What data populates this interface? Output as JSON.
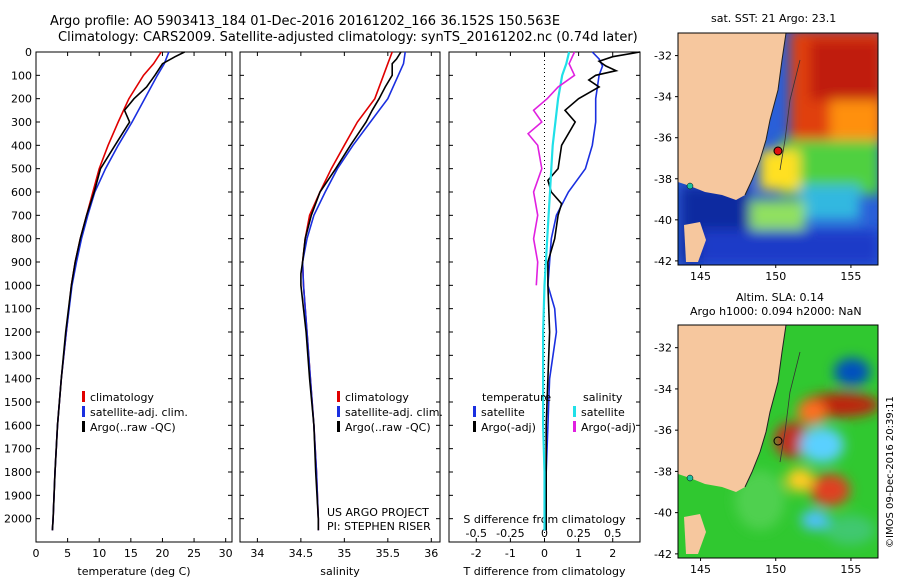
{
  "header": {
    "line1": "Argo profile: AO 5903413_184 01-Dec-2016 20161202_166 36.152S 150.563E",
    "line2": "Climatology: CARS2009. Satellite-adjusted climatology: synTS_20161202.nc (0.74d later)"
  },
  "colors": {
    "climatology": "#e00000",
    "satellite": "#1a2fe0",
    "argo": "#000000",
    "t_sat_diff": "#1a2fe0",
    "t_argo_diff": "#000000",
    "s_sat_diff": "#20e0e8",
    "s_argo_diff": "#e020e0"
  },
  "legend": {
    "climatology": "climatology",
    "satellite_adj": "satellite-adj. clim.",
    "argo_raw": "Argo(..raw -QC)",
    "diff_temperature": "temperature",
    "diff_salinity": "salinity",
    "diff_satellite": "satellite",
    "diff_argo_adj": "Argo(-adj)"
  },
  "credits": {
    "project": "US ARGO PROJECT",
    "pi": "PI: STEPHEN RISER",
    "imos": "©IMOS 09-Dec-2016 20:39:11"
  },
  "maps": {
    "sst_title": "sat. SST: 21 Argo: 23.1",
    "sla_title1": "Altim. SLA: 0.14",
    "sla_title2": "Argo h1000: 0.094 h2000: NaN",
    "lon_ticks": [
      "145",
      "150",
      "155"
    ],
    "lat_ticks": [
      "-32",
      "-34",
      "-36",
      "-38",
      "-40",
      "-42"
    ]
  },
  "chart_data": [
    {
      "type": "line",
      "xlabel": "temperature (deg C)",
      "ylabel": "",
      "xlim": [
        0,
        31
      ],
      "ylim": [
        2100,
        0
      ],
      "xticks": [
        "0",
        "5",
        "10",
        "15",
        "20",
        "25",
        "30"
      ],
      "yticks": [
        "0",
        "100",
        "200",
        "300",
        "400",
        "500",
        "600",
        "700",
        "800",
        "900",
        "1000",
        "1100",
        "1200",
        "1300",
        "1400",
        "1500",
        "1600",
        "1700",
        "1800",
        "1900",
        "2000"
      ],
      "series": [
        {
          "name": "climatology",
          "depth": [
            0,
            50,
            100,
            200,
            300,
            400,
            500,
            600,
            700,
            800,
            900,
            1000,
            1200,
            1400,
            1600,
            1800,
            2000,
            2050
          ],
          "values": [
            19.8,
            18.6,
            17.0,
            14.7,
            13.0,
            11.4,
            10.0,
            9.0,
            8.0,
            7.0,
            6.2,
            5.6,
            4.8,
            4.0,
            3.4,
            3.0,
            2.7,
            2.6
          ]
        },
        {
          "name": "satellite-adj. clim.",
          "depth": [
            0,
            50,
            100,
            200,
            300,
            400,
            500,
            600,
            700,
            800,
            900,
            1000,
            1200,
            1400,
            1600,
            1800,
            2000,
            2050
          ],
          "values": [
            21.0,
            20.3,
            19.2,
            17.2,
            15.2,
            13.0,
            11.0,
            9.3,
            8.2,
            7.2,
            6.4,
            5.7,
            4.8,
            4.0,
            3.4,
            3.0,
            2.7,
            2.6
          ]
        },
        {
          "name": "Argo(..raw -QC)",
          "depth": [
            0,
            20,
            50,
            100,
            150,
            200,
            250,
            300,
            400,
            500,
            600,
            700,
            800,
            900,
            1000,
            1200,
            1400,
            1600,
            1800,
            2000,
            2050
          ],
          "values": [
            23.5,
            22.0,
            20.0,
            18.8,
            17.5,
            15.5,
            14.0,
            14.8,
            12.5,
            10.2,
            9.2,
            8.0,
            7.0,
            6.2,
            5.6,
            4.7,
            4.0,
            3.4,
            3.0,
            2.7,
            2.6
          ]
        }
      ]
    },
    {
      "type": "line",
      "xlabel": "salinity",
      "ylabel": "",
      "xlim": [
        33.8,
        36.1
      ],
      "ylim": [
        2100,
        0
      ],
      "xticks": [
        "34",
        "34.5",
        "35",
        "35.5",
        "36"
      ],
      "series": [
        {
          "name": "climatology",
          "depth": [
            0,
            50,
            100,
            200,
            300,
            400,
            500,
            600,
            700,
            800,
            900,
            1000,
            1200,
            1400,
            1600,
            1800,
            2000,
            2050
          ],
          "values": [
            35.55,
            35.5,
            35.45,
            35.35,
            35.15,
            35.0,
            34.85,
            34.72,
            34.6,
            34.55,
            34.52,
            34.53,
            34.57,
            34.61,
            34.65,
            34.68,
            34.7,
            34.7
          ]
        },
        {
          "name": "satellite-adj. clim.",
          "depth": [
            0,
            50,
            100,
            200,
            300,
            400,
            500,
            600,
            700,
            800,
            900,
            1000,
            1200,
            1400,
            1600,
            1800,
            2000,
            2050
          ],
          "values": [
            35.7,
            35.68,
            35.62,
            35.5,
            35.3,
            35.1,
            34.92,
            34.78,
            34.65,
            34.57,
            34.52,
            34.53,
            34.57,
            34.61,
            34.65,
            34.68,
            34.7,
            34.7
          ]
        },
        {
          "name": "Argo(..raw -QC)",
          "depth": [
            0,
            30,
            50,
            100,
            150,
            200,
            250,
            300,
            400,
            500,
            600,
            700,
            800,
            900,
            950,
            1000,
            1100,
            1200,
            1400,
            1600,
            1800,
            2000,
            2050
          ],
          "values": [
            35.65,
            35.6,
            35.55,
            35.55,
            35.47,
            35.4,
            35.32,
            35.25,
            35.07,
            34.9,
            34.72,
            34.62,
            34.55,
            34.52,
            34.5,
            34.5,
            34.53,
            34.56,
            34.6,
            34.65,
            34.67,
            34.7,
            34.7
          ]
        }
      ]
    },
    {
      "type": "line",
      "xlabel": "T difference from climatology",
      "xlabel2": "S difference from climatology",
      "xlim": [
        -2.8,
        2.8
      ],
      "ylim": [
        2100,
        0
      ],
      "xticks": [
        "-2",
        "-1",
        "0",
        "1",
        "2"
      ],
      "xticks_s": [
        "-0.5",
        "-0.25",
        "0",
        "0.25",
        "0.5"
      ],
      "series": [
        {
          "name": "temperature satellite",
          "depth": [
            0,
            30,
            60,
            100,
            200,
            300,
            400,
            500,
            600,
            700,
            800,
            900,
            1000,
            1100,
            1200,
            1400,
            1600,
            1800,
            2000,
            2050
          ],
          "values": [
            1.4,
            1.6,
            1.7,
            1.6,
            1.5,
            1.5,
            1.4,
            1.2,
            0.7,
            0.35,
            0.2,
            0.15,
            0.1,
            0.3,
            0.35,
            0.15,
            0.1,
            0.05,
            0.02,
            0.0
          ]
        },
        {
          "name": "temperature Argo(-adj)",
          "depth": [
            0,
            20,
            40,
            60,
            80,
            100,
            120,
            150,
            200,
            250,
            300,
            400,
            500,
            550,
            600,
            650,
            700,
            800,
            900,
            1000,
            1200,
            1400,
            1600,
            1800,
            2000,
            2050
          ],
          "values": [
            2.8,
            2.0,
            1.6,
            1.8,
            2.1,
            1.5,
            1.3,
            1.6,
            1.0,
            0.6,
            0.9,
            0.5,
            0.4,
            0.1,
            0.2,
            0.5,
            0.4,
            0.3,
            0.1,
            0.1,
            0.15,
            0.1,
            0.05,
            0.05,
            0.05,
            0.05
          ]
        },
        {
          "name": "salinity satellite",
          "depth": [
            0,
            50,
            100,
            200,
            300,
            400,
            500,
            600,
            700,
            800,
            900,
            1000,
            1200,
            1400,
            1600,
            1800,
            2000,
            2050
          ],
          "values": [
            0.18,
            0.16,
            0.13,
            0.1,
            0.08,
            0.06,
            0.05,
            0.04,
            0.03,
            0.02,
            0.01,
            0.0,
            -0.01,
            -0.01,
            -0.01,
            0.0,
            0.0,
            0.0
          ]
        },
        {
          "name": "salinity Argo(-adj)",
          "depth": [
            0,
            50,
            100,
            150,
            200,
            250,
            300,
            350,
            400,
            500,
            600,
            700,
            800,
            900,
            1000
          ],
          "values": [
            0.22,
            0.18,
            0.22,
            0.1,
            0.02,
            -0.08,
            -0.02,
            -0.12,
            -0.05,
            -0.02,
            -0.08,
            -0.05,
            -0.08,
            -0.05,
            -0.06
          ]
        }
      ]
    }
  ]
}
